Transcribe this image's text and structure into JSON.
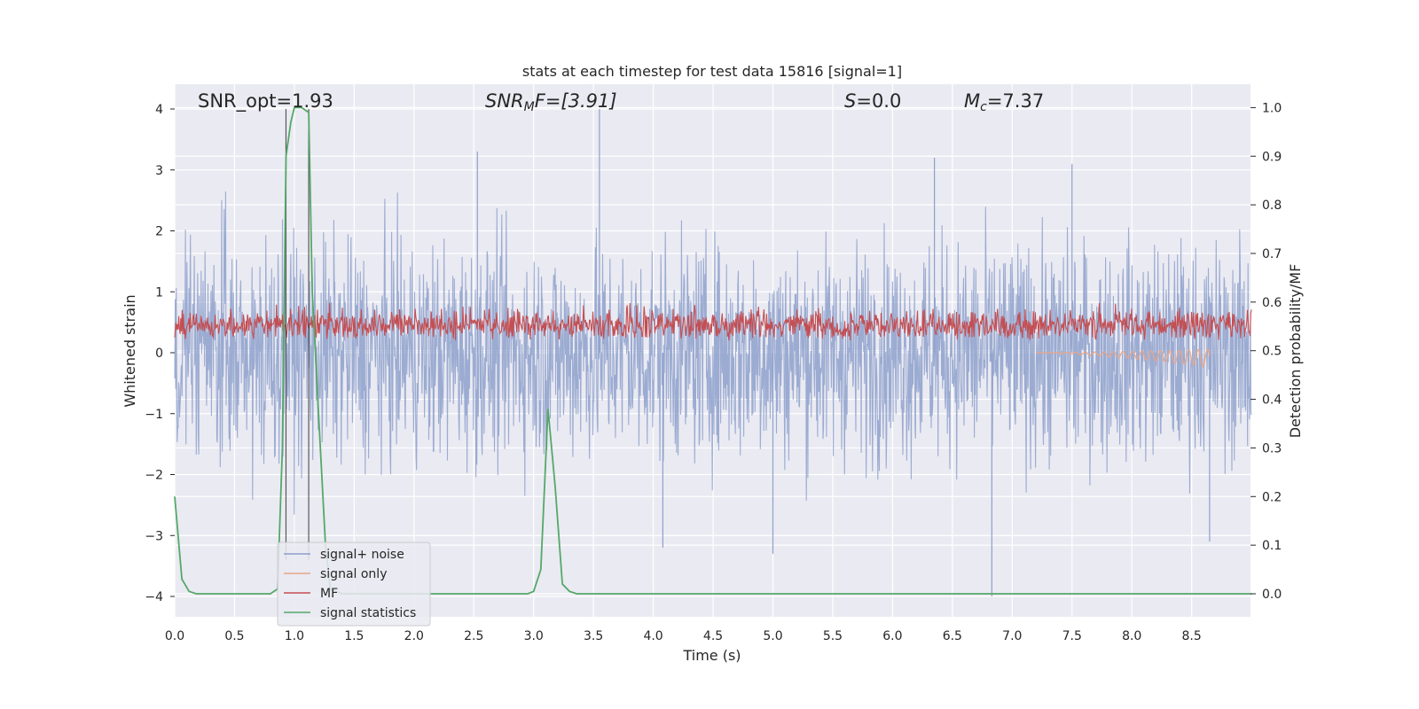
{
  "chart_data": {
    "type": "line",
    "title": "stats at each timestep for test data 15816 [signal=1]",
    "xlabel": "Time (s)",
    "ylabel": "Whitened strain",
    "ylabel_right": "Detection probability/MF",
    "xlim": [
      0.0,
      9.0
    ],
    "ylim": [
      -4.35,
      4.4
    ],
    "ylim_right": [
      -0.05,
      1.04
    ],
    "xticks": [
      "0.0",
      "0.5",
      "1.0",
      "1.5",
      "2.0",
      "2.5",
      "3.0",
      "3.5",
      "4.0",
      "4.5",
      "5.0",
      "5.5",
      "6.0",
      "6.5",
      "7.0",
      "7.5",
      "8.0",
      "8.5"
    ],
    "yticks": [
      "4",
      "3",
      "2",
      "1",
      "0",
      "−1",
      "−2",
      "−3",
      "−4"
    ],
    "yticks_right": [
      "1.0",
      "0.9",
      "0.8",
      "0.7",
      "0.6",
      "0.5",
      "0.4",
      "0.3",
      "0.2",
      "0.1",
      "0.0"
    ],
    "annotations": {
      "snr_opt": "SNR_opt=1.93",
      "snr_mf": "SNR",
      "snr_mf_sub": "M",
      "snr_mf_rest": "F=[3.91]",
      "s": "S",
      "s_rest": "=0.0",
      "mc": "M",
      "mc_sub": "c",
      "mc_rest": "=7.37"
    },
    "vlines": [
      0.93,
      1.12
    ],
    "legend": {
      "position": "lower-left",
      "entries": [
        {
          "label": "signal+ noise",
          "color": "#8da0cb"
        },
        {
          "label": "signal only",
          "color": "#e8a58a"
        },
        {
          "label": "MF",
          "color": "#c44e52"
        },
        {
          "label": "signal statistics",
          "color": "#55a868"
        }
      ]
    },
    "series": [
      {
        "name": "signal+ noise",
        "axis": "left",
        "description": "whitened noisy strain, amplitude within about ±3.5, peak near 4.0 at t≈3.55",
        "peak_max": 4.0,
        "peak_min": -4.0
      },
      {
        "name": "signal only",
        "axis": "left",
        "description": "chirp ending near t≈8.65 with amplitude ~0.15"
      },
      {
        "name": "MF",
        "axis": "right",
        "description": "matched filter output between ~0.5 and ~0.63"
      },
      {
        "name": "signal statistics",
        "axis": "right",
        "x": [
          0.0,
          0.06,
          0.12,
          0.18,
          0.3,
          0.5,
          0.7,
          0.8,
          0.86,
          0.9,
          0.93,
          0.97,
          1.0,
          1.06,
          1.12,
          1.15,
          1.2,
          1.26,
          1.3,
          1.4,
          2.0,
          2.6,
          2.95,
          3.0,
          3.06,
          3.12,
          3.18,
          3.24,
          3.3,
          3.36,
          3.5,
          4.0,
          5.0,
          6.0,
          7.0,
          8.0,
          9.0
        ],
        "values": [
          0.2,
          0.03,
          0.005,
          0.0,
          0.0,
          0.0,
          0.0,
          0.0,
          0.01,
          0.3,
          0.9,
          0.97,
          1.0,
          1.0,
          0.99,
          0.62,
          0.38,
          0.1,
          0.01,
          0.0,
          0.0,
          0.0,
          0.0,
          0.005,
          0.05,
          0.38,
          0.22,
          0.02,
          0.005,
          0.0,
          0.0,
          0.0,
          0.0,
          0.0,
          0.0,
          0.0,
          0.0
        ]
      }
    ]
  }
}
